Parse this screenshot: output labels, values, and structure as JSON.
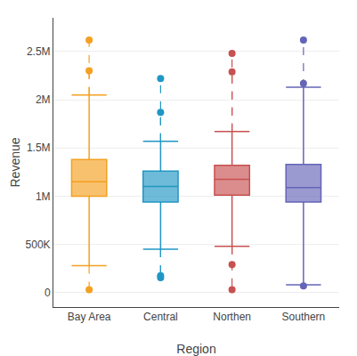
{
  "chart_data": {
    "type": "box",
    "categories": [
      "Bay Area",
      "Central",
      "Northen",
      "Southern"
    ],
    "colors": [
      "#F4A020",
      "#2196C4",
      "#C85050",
      "#6464B8"
    ],
    "boxes": [
      {
        "q1": 1000000,
        "median": 1150000,
        "q3": 1380000,
        "whislo": 280000,
        "whishi": 2050000,
        "fliers_high": [
          2300000,
          2620000
        ],
        "fliers_low": [
          30000
        ]
      },
      {
        "q1": 940000,
        "median": 1100000,
        "q3": 1260000,
        "whislo": 450000,
        "whishi": 1570000,
        "fliers_high": [
          1870000,
          2220000
        ],
        "fliers_low": [
          155000,
          175000
        ]
      },
      {
        "q1": 1010000,
        "median": 1175000,
        "q3": 1320000,
        "whislo": 480000,
        "whishi": 1670000,
        "fliers_high": [
          2290000,
          2480000
        ],
        "fliers_low": [
          30000,
          290000
        ]
      },
      {
        "q1": 940000,
        "median": 1090000,
        "q3": 1330000,
        "whislo": 80000,
        "whishi": 2130000,
        "fliers_high": [
          2170000,
          2620000
        ],
        "fliers_low": [
          70000
        ]
      }
    ],
    "xlabel": "Region",
    "ylabel": "Revenue",
    "ylim": [
      -150000,
      2850000
    ],
    "yticks": [
      0,
      {
        "value": 500000,
        "label": "500K"
      },
      {
        "value": 1000000,
        "label": "1M"
      },
      {
        "value": 1500000,
        "label": "1.5M"
      },
      {
        "value": 2000000,
        "label": "2M"
      },
      {
        "value": 2500000,
        "label": "2.5M"
      }
    ],
    "grid": true
  }
}
